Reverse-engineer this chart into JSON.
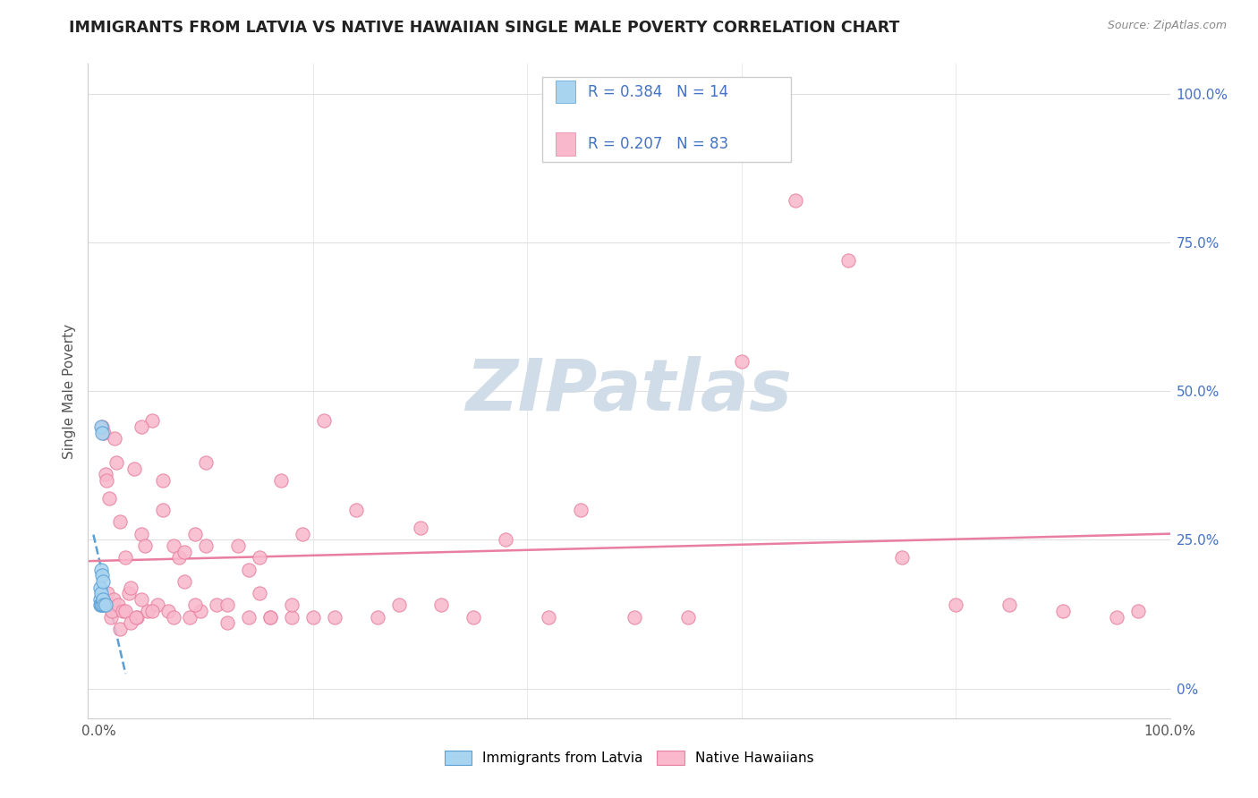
{
  "title": "IMMIGRANTS FROM LATVIA VS NATIVE HAWAIIAN SINGLE MALE POVERTY CORRELATION CHART",
  "source": "Source: ZipAtlas.com",
  "ylabel": "Single Male Poverty",
  "xlim": [
    -0.01,
    1.0
  ],
  "ylim": [
    -0.05,
    1.05
  ],
  "legend_labels": [
    "Immigrants from Latvia",
    "Native Hawaiians"
  ],
  "legend_R_N": [
    {
      "R": "0.384",
      "N": "14",
      "color": "#a8d4f0"
    },
    {
      "R": "0.207",
      "N": "83",
      "color": "#f9b8cc"
    }
  ],
  "watermark_text": "ZIPatlas",
  "latvia_color": "#a8d4f0",
  "latvia_edge_color": "#5a9fd4",
  "hawaii_color": "#f9b8cc",
  "hawaii_edge_color": "#e87fa0",
  "latvia_line_color": "#5a9fd4",
  "hawaii_line_color": "#e87fa0",
  "background_color": "#ffffff",
  "grid_color": "#e0e0e0",
  "right_tick_color": "#4472c4",
  "latvia_x": [
    0.001,
    0.001,
    0.001,
    0.002,
    0.002,
    0.002,
    0.002,
    0.003,
    0.003,
    0.003,
    0.004,
    0.004,
    0.005,
    0.006
  ],
  "latvia_y": [
    0.17,
    0.15,
    0.14,
    0.44,
    0.2,
    0.16,
    0.14,
    0.43,
    0.19,
    0.14,
    0.18,
    0.15,
    0.14,
    0.14
  ],
  "hawaii_x": [
    0.003,
    0.005,
    0.006,
    0.007,
    0.008,
    0.009,
    0.01,
    0.011,
    0.012,
    0.014,
    0.015,
    0.016,
    0.018,
    0.02,
    0.022,
    0.025,
    0.028,
    0.03,
    0.033,
    0.036,
    0.04,
    0.043,
    0.046,
    0.05,
    0.055,
    0.06,
    0.065,
    0.07,
    0.075,
    0.08,
    0.085,
    0.09,
    0.095,
    0.1,
    0.11,
    0.12,
    0.13,
    0.14,
    0.15,
    0.16,
    0.17,
    0.18,
    0.19,
    0.2,
    0.21,
    0.22,
    0.24,
    0.26,
    0.28,
    0.3,
    0.32,
    0.35,
    0.38,
    0.42,
    0.45,
    0.5,
    0.55,
    0.6,
    0.65,
    0.7,
    0.75,
    0.8,
    0.85,
    0.9,
    0.95,
    0.97,
    0.04,
    0.06,
    0.08,
    0.1,
    0.12,
    0.14,
    0.15,
    0.16,
    0.18,
    0.02,
    0.025,
    0.03,
    0.035,
    0.04,
    0.05,
    0.07,
    0.09
  ],
  "hawaii_y": [
    0.44,
    0.43,
    0.36,
    0.35,
    0.16,
    0.14,
    0.32,
    0.12,
    0.13,
    0.15,
    0.42,
    0.38,
    0.14,
    0.28,
    0.13,
    0.22,
    0.16,
    0.17,
    0.37,
    0.12,
    0.26,
    0.24,
    0.13,
    0.45,
    0.14,
    0.3,
    0.13,
    0.24,
    0.22,
    0.23,
    0.12,
    0.26,
    0.13,
    0.38,
    0.14,
    0.11,
    0.24,
    0.12,
    0.22,
    0.12,
    0.35,
    0.12,
    0.26,
    0.12,
    0.45,
    0.12,
    0.3,
    0.12,
    0.14,
    0.27,
    0.14,
    0.12,
    0.25,
    0.12,
    0.3,
    0.12,
    0.12,
    0.55,
    0.82,
    0.72,
    0.22,
    0.14,
    0.14,
    0.13,
    0.12,
    0.13,
    0.44,
    0.35,
    0.18,
    0.24,
    0.14,
    0.2,
    0.16,
    0.12,
    0.14,
    0.1,
    0.13,
    0.11,
    0.12,
    0.15,
    0.13,
    0.12,
    0.14
  ]
}
